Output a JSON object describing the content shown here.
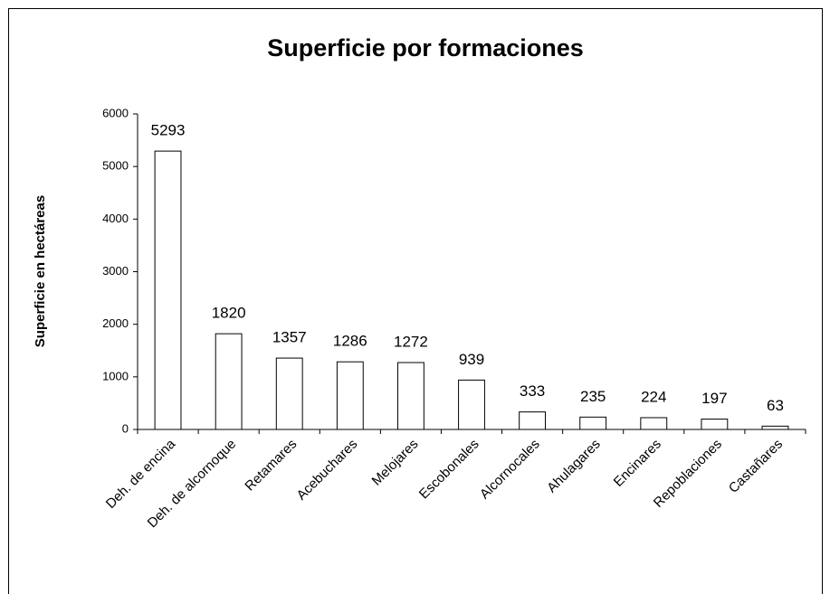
{
  "chart_data": {
    "type": "bar",
    "title": "Superficie por  formaciones",
    "y_label": "Superficie en hectáreas",
    "categories": [
      "Deh. de encina",
      "Deh. de alcornoque",
      "Retamares",
      "Acebuchares",
      "Melojares",
      "Escobonales",
      "Alcornocales",
      "Ahulagares",
      "Encinares",
      "Repoblaciones",
      "Castañares"
    ],
    "values": [
      5293,
      1820,
      1357,
      1286,
      1272,
      939,
      333,
      235,
      224,
      197,
      63
    ],
    "color": "#ffffff",
    "ylim": [
      0,
      6000
    ],
    "yticks": [
      0,
      1000,
      2000,
      3000,
      4000,
      5000,
      6000
    ],
    "grid": false
  }
}
